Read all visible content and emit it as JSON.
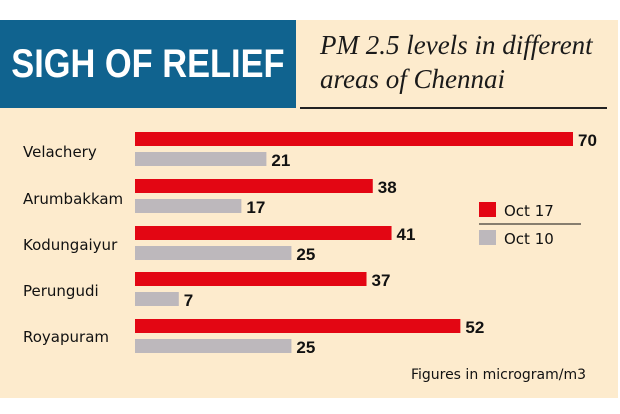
{
  "header": {
    "title": "SIGH OF RELIEF",
    "subtitle_line1": "PM 2.5 levels in different",
    "subtitle_line2": "areas of Chennai"
  },
  "colors": {
    "background_panel": "#fdebcd",
    "title_box": "#10638f",
    "series_oct17": "#e30613",
    "series_oct10": "#bdb8bc"
  },
  "chart_data": {
    "type": "bar",
    "orientation": "horizontal",
    "title": "SIGH OF RELIEF",
    "subtitle": "PM 2.5 levels in different areas of Chennai",
    "categories": [
      "Velachery",
      "Arumbakkam",
      "Kodungaiyur",
      "Perungudi",
      "Royapuram"
    ],
    "series": [
      {
        "name": "Oct 17",
        "color": "#e30613",
        "values": [
          70,
          38,
          41,
          37,
          52
        ]
      },
      {
        "name": "Oct 10",
        "color": "#bdb8bc",
        "values": [
          21,
          17,
          25,
          7,
          25
        ]
      }
    ],
    "xlabel": "",
    "ylabel": "",
    "xlim": [
      0,
      70
    ],
    "grid": false,
    "legend": {
      "placement": "right",
      "entries": [
        "Oct 17",
        "Oct 10"
      ]
    },
    "annotations": [
      "Figures in microgram/m3"
    ]
  },
  "footer": {
    "note": "Figures in microgram/m3"
  }
}
